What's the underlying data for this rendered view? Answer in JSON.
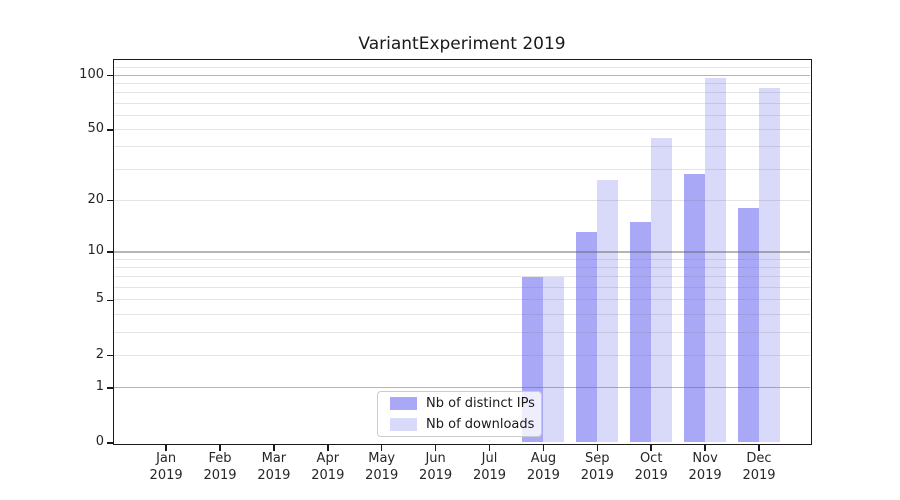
{
  "chart_data": {
    "type": "bar",
    "title": "VariantExperiment 2019",
    "categories": [
      "Jan 2019",
      "Feb 2019",
      "Mar 2019",
      "Apr 2019",
      "May 2019",
      "Jun 2019",
      "Jul 2019",
      "Aug 2019",
      "Sep 2019",
      "Oct 2019",
      "Nov 2019",
      "Dec 2019"
    ],
    "series": [
      {
        "name": "Nb of distinct IPs",
        "color": "#a8a8f7",
        "values": [
          0,
          0,
          0,
          0,
          0,
          0,
          0,
          7,
          13,
          15,
          28,
          18
        ]
      },
      {
        "name": "Nb of downloads",
        "color": "#d9d9f9",
        "values": [
          0,
          0,
          0,
          0,
          0,
          0,
          0,
          7,
          26,
          45,
          97,
          85
        ]
      }
    ],
    "yscale": "log1p",
    "ylim": [
      0,
      122
    ],
    "ytick_values": [
      0,
      1,
      2,
      5,
      10,
      20,
      50,
      100
    ],
    "ytick_labels": [
      "0",
      "1",
      "2",
      "5",
      "10",
      "20",
      "50",
      "100"
    ],
    "decade_gridlines": [
      1,
      10,
      100
    ],
    "minor_gridlines": [
      2,
      3,
      4,
      5,
      6,
      7,
      8,
      9,
      20,
      30,
      40,
      50,
      60,
      70,
      80,
      90,
      110
    ],
    "grid": true,
    "legend_position": "lower center",
    "xlabel": "",
    "ylabel": ""
  },
  "colors": {
    "bar_ips": "#a8a8f7",
    "bar_downloads": "#d9d9f9",
    "grid_decade": "#b5b5b5",
    "grid_minor": "#e7e7e7",
    "spine": "#1a1a1a",
    "tick_text": "#262626",
    "legend_border": "#cccccc"
  }
}
